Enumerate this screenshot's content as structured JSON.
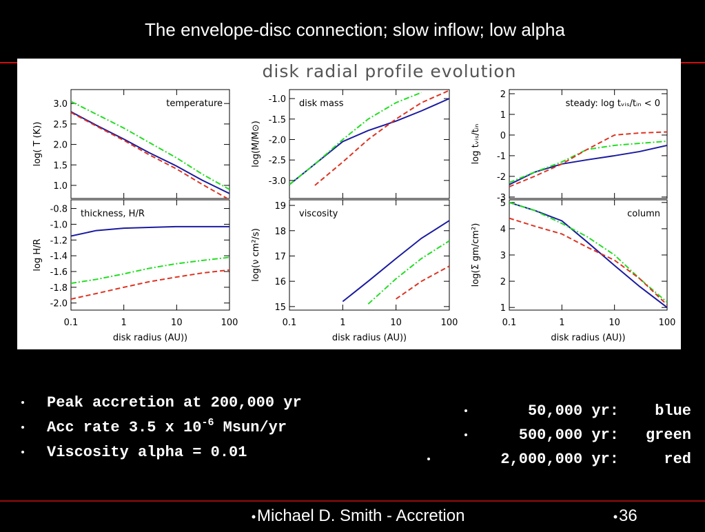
{
  "title": "The envelope-disc connection; slow inflow; low alpha",
  "figure_title": "disk radial profile evolution",
  "bullets": [
    {
      "parts": [
        "Peak accretion at 200,000 yr"
      ]
    },
    {
      "parts": [
        "Acc rate 3.5 x 10",
        "-6",
        " Msun/yr"
      ]
    },
    {
      "parts": [
        "Viscosity alpha = 0.01"
      ]
    }
  ],
  "legend": [
    {
      "time": "50,000 yr:",
      "color_name": "blue"
    },
    {
      "time": "500,000 yr:",
      "color_name": "green"
    },
    {
      "time": "2,000,000 yr:",
      "color_name": "red"
    }
  ],
  "footer": {
    "text": "Michael D. Smith - Accretion",
    "page": "36"
  },
  "chart_data": [
    {
      "type": "line",
      "annotation": "temperature",
      "ylabel": "log( T (K))",
      "xscale": "log",
      "x": [
        0.1,
        0.3,
        1,
        3,
        10,
        30,
        100
      ],
      "xlim": [
        0.1,
        100
      ],
      "xticks": [
        0.1,
        1,
        10,
        100
      ],
      "ylim": [
        0.68,
        3.34
      ],
      "yticks": [
        {
          "value": 3,
          "label": "3.0"
        },
        2.5,
        {
          "value": 2,
          "label": "2.0"
        },
        1.5,
        {
          "value": 1,
          "label": "1.0"
        }
      ],
      "series": [
        {
          "color": "#1a1aa0",
          "style": "solid",
          "values": [
            2.8,
            2.47,
            2.13,
            1.8,
            1.47,
            1.13,
            0.8
          ]
        },
        {
          "color": "#22dd22",
          "style": "dashdot",
          "values": [
            3.05,
            2.74,
            2.4,
            2.05,
            1.67,
            1.28,
            0.9
          ]
        },
        {
          "color": "#dd3322",
          "style": "dashed",
          "values": [
            2.78,
            2.45,
            2.1,
            1.75,
            1.4,
            1.03,
            0.65
          ]
        }
      ]
    },
    {
      "type": "line",
      "annotation": "disk mass",
      "ylabel": "log(M/M⊙)",
      "xscale": "log",
      "x": [
        0.1,
        0.3,
        1,
        3,
        10,
        30,
        100
      ],
      "xlim": [
        0.1,
        100
      ],
      "xticks": [
        0.1,
        1,
        10,
        100
      ],
      "ylim": [
        -3.44,
        -0.78
      ],
      "yticks": [
        {
          "value": -1,
          "label": "-1.0"
        },
        -1.5,
        {
          "value": -2,
          "label": "-2.0"
        },
        -2.5,
        {
          "value": -3,
          "label": "-3.0"
        }
      ],
      "series": [
        {
          "color": "#1a1aa0",
          "style": "solid",
          "values": [
            -3.1,
            -2.6,
            -2.05,
            -1.78,
            -1.55,
            -1.3,
            -1.0
          ]
        },
        {
          "color": "#22dd22",
          "style": "dashdot",
          "values": [
            -3.1,
            -2.6,
            -2.0,
            -1.5,
            -1.1,
            -0.85,
            null
          ]
        },
        {
          "color": "#dd3322",
          "style": "dashed",
          "values": [
            null,
            -3.12,
            -2.55,
            -2.0,
            -1.5,
            -1.1,
            -0.8
          ]
        }
      ]
    },
    {
      "type": "line",
      "annotation": "steady: log tᵥᵢₛ/tᵢₙ < 0",
      "ylabel": "log  tᵥᵢₛ/tᵢₙ",
      "xscale": "log",
      "x": [
        0.1,
        0.3,
        1,
        3,
        10,
        30,
        100
      ],
      "xlim": [
        0.1,
        100
      ],
      "xticks": [
        0.1,
        1,
        10,
        100
      ],
      "ylim": [
        -3.07,
        2.2
      ],
      "yticks": [
        2,
        1,
        0,
        -1,
        -2,
        -3
      ],
      "series": [
        {
          "color": "#1a1aa0",
          "style": "solid",
          "values": [
            -2.4,
            -1.8,
            -1.4,
            -1.2,
            -1.0,
            -0.8,
            -0.5
          ]
        },
        {
          "color": "#22dd22",
          "style": "dashdot",
          "values": [
            -2.3,
            -1.8,
            -1.3,
            -0.7,
            -0.5,
            -0.4,
            -0.3
          ]
        },
        {
          "color": "#dd3322",
          "style": "dashed",
          "values": [
            -2.5,
            -2.0,
            -1.4,
            -0.7,
            0.0,
            0.1,
            0.15
          ]
        }
      ]
    },
    {
      "type": "line",
      "annotation": "thickness, H/R",
      "ylabel": "log H/R",
      "xlabel": "disk radius (AU))",
      "xscale": "log",
      "x": [
        0.1,
        0.3,
        1,
        3,
        10,
        30,
        100
      ],
      "xlim": [
        0.1,
        100
      ],
      "xticks": [
        0.1,
        1,
        10,
        100
      ],
      "ylim": [
        -2.09,
        -0.69
      ],
      "yticks": [
        -0.8,
        {
          "value": -1,
          "label": "-1.0"
        },
        -1.2,
        -1.4,
        -1.6,
        -1.8,
        {
          "value": -2,
          "label": "-2.0"
        }
      ],
      "series": [
        {
          "color": "#1a1aa0",
          "style": "solid",
          "values": [
            -1.15,
            -1.08,
            -1.05,
            -1.04,
            -1.03,
            -1.03,
            -1.03
          ]
        },
        {
          "color": "#22dd22",
          "style": "dashdot",
          "values": [
            -1.75,
            -1.7,
            -1.63,
            -1.56,
            -1.5,
            -1.46,
            -1.42
          ]
        },
        {
          "color": "#dd3322",
          "style": "dashed",
          "values": [
            -1.95,
            -1.88,
            -1.8,
            -1.73,
            -1.67,
            -1.62,
            -1.58
          ]
        }
      ]
    },
    {
      "type": "line",
      "annotation": "viscosity",
      "ylabel": "log(ν cm²/s)",
      "xlabel": "disk radius (AU))",
      "xscale": "log",
      "x": [
        0.1,
        0.3,
        1,
        3,
        10,
        30,
        100
      ],
      "xlim": [
        0.1,
        100
      ],
      "xticks": [
        0.1,
        1,
        10,
        100
      ],
      "ylim": [
        14.86,
        19.22
      ],
      "yticks": [
        19,
        18,
        17,
        16,
        15
      ],
      "series": [
        {
          "color": "#1a1aa0",
          "style": "solid",
          "values": [
            null,
            null,
            15.2,
            16.0,
            16.9,
            17.7,
            18.4
          ]
        },
        {
          "color": "#22dd22",
          "style": "dashdot",
          "values": [
            null,
            null,
            null,
            15.1,
            16.1,
            16.9,
            17.6
          ]
        },
        {
          "color": "#dd3322",
          "style": "dashed",
          "values": [
            null,
            null,
            null,
            null,
            15.3,
            16.0,
            16.6
          ]
        }
      ]
    },
    {
      "type": "line",
      "annotation": "column",
      "ylabel": "log(Σ gm/cm²)",
      "xlabel": "disk radius (AU))",
      "xscale": "log",
      "x": [
        0.1,
        0.3,
        1,
        3,
        10,
        30,
        100
      ],
      "xlim": [
        0.1,
        100
      ],
      "xticks": [
        0.1,
        1,
        10,
        100
      ],
      "ylim": [
        0.9,
        5.1
      ],
      "yticks": [
        5,
        4,
        3,
        2,
        1
      ],
      "series": [
        {
          "color": "#1a1aa0",
          "style": "solid",
          "values": [
            5.0,
            4.7,
            4.3,
            3.5,
            2.6,
            1.8,
            1.0
          ]
        },
        {
          "color": "#22dd22",
          "style": "dashdot",
          "values": [
            5.0,
            4.7,
            4.2,
            3.7,
            3.0,
            2.1,
            1.2
          ]
        },
        {
          "color": "#dd3322",
          "style": "dashed",
          "values": [
            4.4,
            4.1,
            3.8,
            3.3,
            2.8,
            2.1,
            1.1
          ]
        }
      ]
    }
  ]
}
